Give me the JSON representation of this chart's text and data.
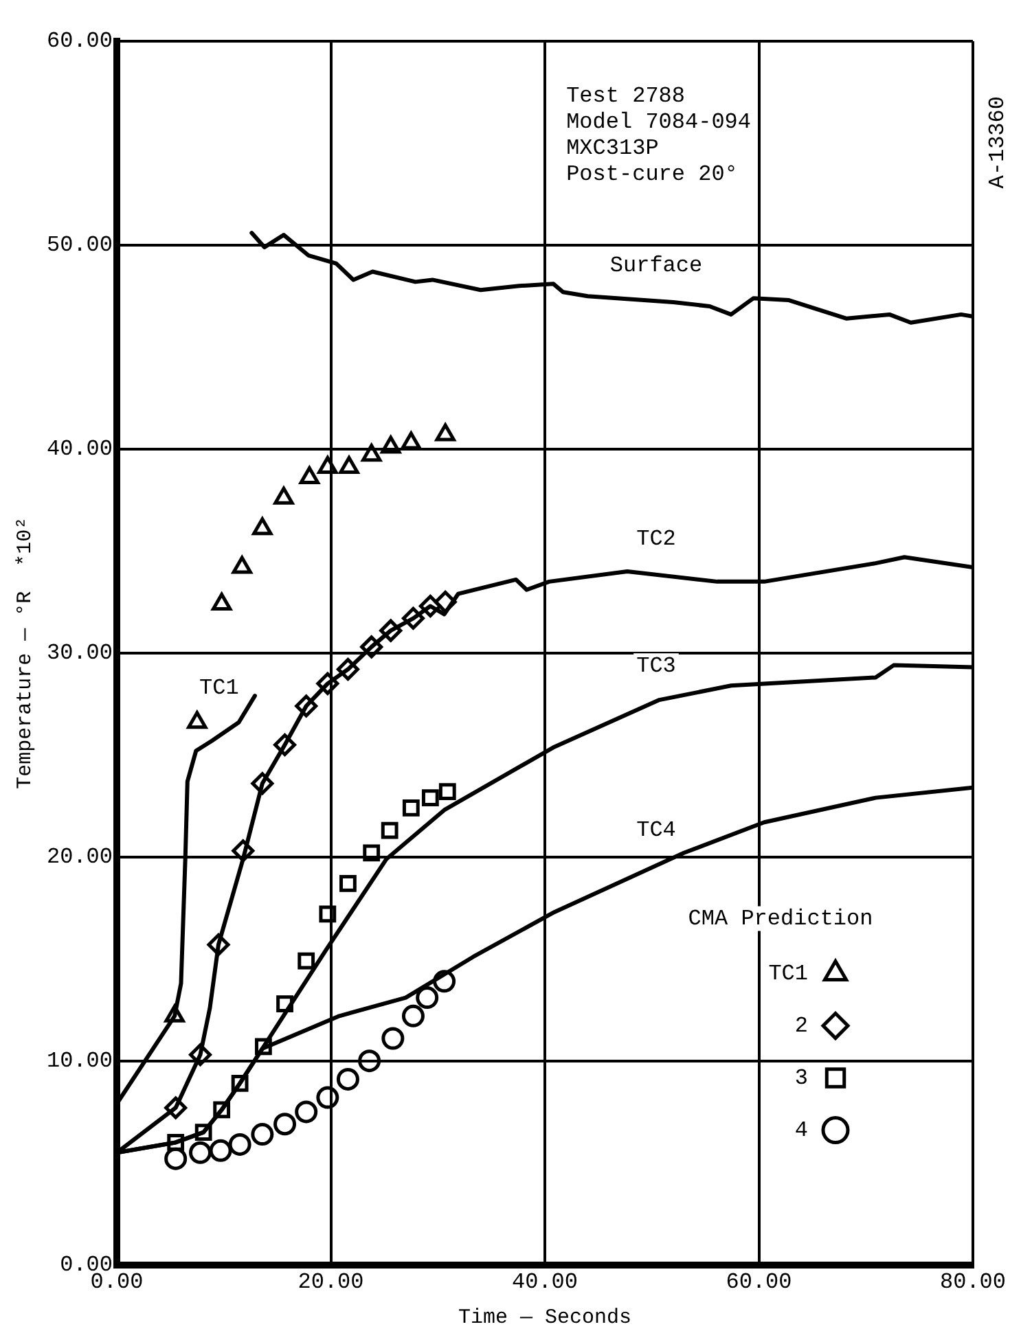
{
  "chart_data": {
    "type": "line",
    "xlabel": "Time — Seconds",
    "ylabel": "Temperature — °R  *10²",
    "legend_title": "CMA Prediction",
    "legend": "bottom right",
    "grid": true,
    "xlim": [
      0,
      80
    ],
    "xticks": [
      {
        "value": 0,
        "label": "0.00"
      },
      {
        "value": 20,
        "label": "20.00"
      },
      {
        "value": 40,
        "label": "40.00"
      },
      {
        "value": 60,
        "label": "60.00"
      },
      {
        "value": 80,
        "label": "80.00"
      }
    ],
    "ylim": [
      0,
      60
    ],
    "yticks": [
      {
        "value": 0,
        "label": "0.00"
      },
      {
        "value": 10,
        "label": "10.00"
      },
      {
        "value": 20,
        "label": "20.00"
      },
      {
        "value": 30,
        "label": "30.00"
      },
      {
        "value": 40,
        "label": "40.00"
      },
      {
        "value": 50,
        "label": "50.00"
      },
      {
        "value": 60,
        "label": "60.00"
      }
    ],
    "annotations": [
      "Test 2788\nModel 7084-094\nMXC313P\nPost-cure 20°",
      "A-13360"
    ],
    "series": [
      {
        "name": "Surface",
        "color": "#000000",
        "marker": "none",
        "x": [
          12.6,
          13.8,
          15.6,
          17.9,
          20.5,
          22.1,
          23.9,
          27.9,
          29.5,
          34,
          37.6,
          40.8,
          41.7,
          44,
          52,
          55.4,
          57.4,
          59.5,
          62.8,
          68.2,
          72.2,
          74.2,
          78.9,
          80
        ],
        "values": [
          50.6,
          49.9,
          50.5,
          49.5,
          49.1,
          48.3,
          48.7,
          48.2,
          48.3,
          47.8,
          48.0,
          48.1,
          47.7,
          47.5,
          47.2,
          47.0,
          46.6,
          47.4,
          47.3,
          46.4,
          46.6,
          46.2,
          46.6,
          46.5
        ]
      },
      {
        "name": "TC1",
        "color": "#000000",
        "marker": "none",
        "x": [
          0,
          5.4,
          6.0,
          6.4,
          6.6,
          7.4,
          8.9,
          11.4,
          12.9
        ],
        "values": [
          7.9,
          12.2,
          13.8,
          19.9,
          23.7,
          25.2,
          25.7,
          26.6,
          27.9
        ]
      },
      {
        "name": "TC2",
        "color": "#000000",
        "marker": "none",
        "x": [
          0,
          5.5,
          7.8,
          8.7,
          9.5,
          11.8,
          13.6,
          15.7,
          17.7,
          19.7,
          21.6,
          23.8,
          25.6,
          27.7,
          29.3,
          30.6,
          31.9,
          37.3,
          38.3,
          40.4,
          47.7,
          56.1,
          60.5,
          70.9,
          73.6,
          80
        ],
        "values": [
          5.5,
          7.7,
          10.3,
          12.6,
          15.7,
          19.9,
          23.6,
          25.5,
          27.4,
          28.5,
          29.2,
          30.3,
          31.1,
          31.7,
          32.3,
          31.9,
          32.9,
          33.6,
          33.1,
          33.5,
          34.0,
          33.5,
          33.5,
          34.4,
          34.7,
          34.2
        ]
      },
      {
        "name": "TC3",
        "color": "#000000",
        "marker": "none",
        "x": [
          0,
          5.5,
          8.1,
          9.8,
          11.5,
          13.6,
          19.5,
          25.2,
          30.6,
          40.9,
          50.7,
          57.4,
          70.9,
          72.6,
          80
        ],
        "values": [
          5.5,
          6.0,
          6.5,
          7.6,
          8.9,
          10.6,
          15.4,
          19.9,
          22.3,
          25.4,
          27.7,
          28.4,
          28.8,
          29.4,
          29.3
        ]
      },
      {
        "name": "TC4",
        "color": "#000000",
        "marker": "none",
        "x": [
          0,
          5.5,
          8.1,
          9.8,
          11.5,
          13.6,
          20.8,
          27,
          33.3,
          40.9,
          53,
          60.5,
          70.9,
          80
        ],
        "values": [
          5.5,
          6.0,
          6.5,
          7.6,
          8.9,
          10.6,
          12.2,
          13.1,
          15.1,
          17.3,
          20.2,
          21.7,
          22.9,
          23.4
        ]
      },
      {
        "type": "scatter",
        "name": "TC1",
        "color": "#000000",
        "marker": "triangle",
        "x": [
          5.4,
          7.5,
          9.8,
          11.7,
          13.6,
          15.6,
          18.0,
          19.7,
          21.7,
          23.8,
          25.6,
          27.5,
          30.7
        ],
        "values": [
          12.2,
          26.6,
          32.4,
          34.2,
          36.1,
          37.6,
          38.6,
          39.1,
          39.1,
          39.7,
          40.1,
          40.3,
          40.7
        ]
      },
      {
        "type": "scatter",
        "name": "2",
        "color": "#000000",
        "marker": "diamond",
        "x": [
          5.5,
          7.8,
          9.5,
          11.8,
          13.6,
          15.7,
          17.7,
          19.7,
          21.6,
          23.8,
          25.6,
          27.7,
          29.3,
          30.7
        ],
        "values": [
          7.7,
          10.3,
          15.7,
          20.3,
          23.6,
          25.5,
          27.4,
          28.5,
          29.2,
          30.3,
          31.1,
          31.7,
          32.3,
          32.5
        ]
      },
      {
        "type": "scatter",
        "name": "3",
        "color": "#000000",
        "marker": "square",
        "x": [
          5.5,
          8.1,
          9.8,
          11.5,
          13.7,
          15.7,
          17.7,
          19.7,
          21.6,
          23.8,
          25.5,
          27.5,
          29.3,
          30.9
        ],
        "values": [
          6.0,
          6.5,
          7.6,
          8.9,
          10.7,
          12.8,
          14.9,
          17.2,
          18.7,
          20.2,
          21.3,
          22.4,
          22.9,
          23.2
        ]
      },
      {
        "type": "scatter",
        "name": "4",
        "color": "#000000",
        "marker": "circle",
        "x": [
          5.5,
          7.8,
          9.7,
          11.5,
          13.6,
          15.7,
          17.7,
          19.7,
          21.6,
          23.6,
          25.8,
          27.7,
          29,
          30.6
        ],
        "values": [
          5.2,
          5.5,
          5.6,
          5.9,
          6.4,
          6.9,
          7.5,
          8.2,
          9.1,
          10.0,
          11.1,
          12.2,
          13.1,
          13.9
        ]
      }
    ]
  }
}
